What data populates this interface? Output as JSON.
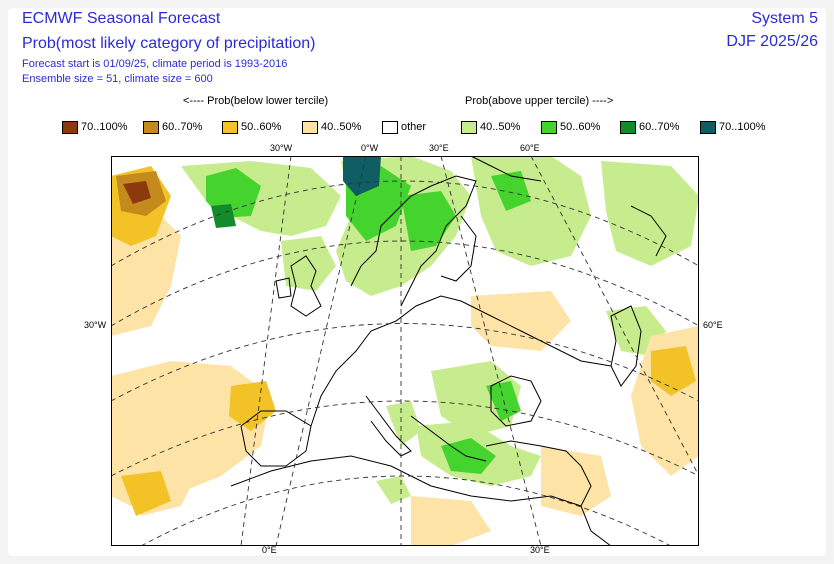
{
  "header": {
    "title": "ECMWF Seasonal Forecast",
    "subtitle": "Prob(most likely category of precipitation)",
    "forecast_info": "Forecast start is 01/09/25, climate period is 1993-2016",
    "ensemble_info": "Ensemble size = 51, climate size = 600",
    "system": "System 5",
    "season": "DJF 2025/26"
  },
  "legend": {
    "below_heading": "<---- Prob(below lower tercile)",
    "above_heading": "Prob(above upper tercile) ---->",
    "items": [
      {
        "label": "70..100%",
        "color": "#8b3a0e"
      },
      {
        "label": "60..70%",
        "color": "#c58a1c"
      },
      {
        "label": "50..60%",
        "color": "#f2c227"
      },
      {
        "label": "40..50%",
        "color": "#fde3a5"
      },
      {
        "label": "other",
        "color": "#ffffff"
      },
      {
        "label": "40..50%",
        "color": "#c7ec8e"
      },
      {
        "label": "50..60%",
        "color": "#45d42e"
      },
      {
        "label": "60..70%",
        "color": "#138b2a"
      },
      {
        "label": "70..100%",
        "color": "#0f5e63"
      }
    ]
  },
  "map": {
    "region": "Europe",
    "graticule_labels": {
      "top": [
        "30°W",
        "0°W",
        "30°E",
        "60°E"
      ],
      "left": [
        "30°W"
      ],
      "right": [
        "60°E"
      ],
      "bottom": [
        "0°E",
        "30°E"
      ]
    }
  }
}
